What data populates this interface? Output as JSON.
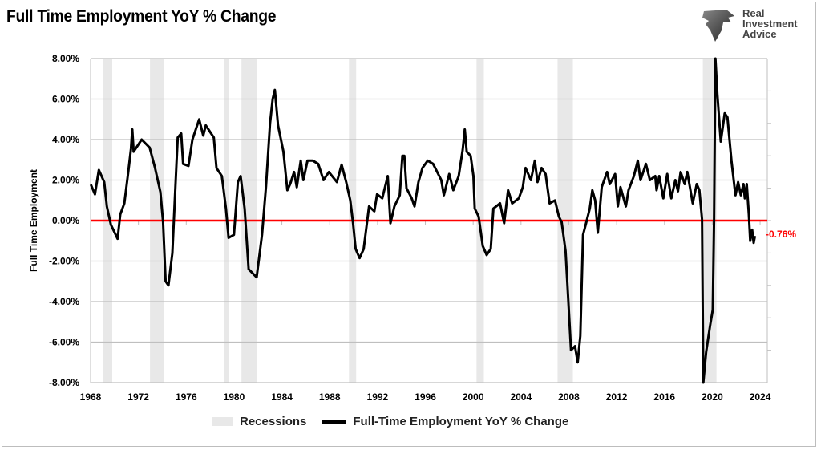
{
  "title": "Full Time Employment YoY % Change",
  "logo": {
    "text": [
      "Real",
      "Investment",
      "Advice"
    ]
  },
  "chart_data": {
    "type": "line",
    "title": "Full Time Employment YoY % Change",
    "ylabel": "Full Time Employment",
    "xlabel": "",
    "xlim": [
      1968,
      2024.6
    ],
    "ylim": [
      -8,
      8
    ],
    "x_ticks": [
      "1968",
      "1972",
      "1976",
      "1980",
      "1984",
      "1988",
      "1992",
      "1996",
      "2000",
      "2004",
      "2008",
      "2012",
      "2016",
      "2020",
      "2024"
    ],
    "y_ticks": [
      "8.00%",
      "6.00%",
      "4.00%",
      "2.00%",
      "0.00%",
      "-2.00%",
      "-4.00%",
      "-6.00%",
      "-8.00%"
    ],
    "grid": "horizontal",
    "legend_position": "bottom",
    "colors": {
      "series": "#000000",
      "recession": "#e8e8e8",
      "zero_line": "#ff0000",
      "annotation": "#ff0000",
      "grid": "#bfbfbf"
    },
    "zero_line": 0,
    "last_value_label": "-0.76%",
    "legend": [
      "Recessions",
      "Full-Time Employment YoY % Change"
    ],
    "recessions": [
      [
        1969.07,
        1969.81
      ],
      [
        1972.97,
        1974.17
      ],
      [
        1979.14,
        1979.54
      ],
      [
        1980.62,
        1981.89
      ],
      [
        1989.61,
        1990.21
      ],
      [
        2000.28,
        2000.89
      ],
      [
        2007.06,
        2008.34
      ],
      [
        2019.21,
        2020.35
      ]
    ],
    "series": [
      {
        "name": "Full-Time Employment YoY % Change",
        "points": [
          [
            1968.02,
            1.78
          ],
          [
            1968.36,
            1.3
          ],
          [
            1968.69,
            2.5
          ],
          [
            1969.14,
            1.9
          ],
          [
            1969.36,
            0.7
          ],
          [
            1969.7,
            -0.2
          ],
          [
            1970.26,
            -0.9
          ],
          [
            1970.48,
            0.3
          ],
          [
            1970.82,
            0.85
          ],
          [
            1971.15,
            2.4
          ],
          [
            1971.38,
            3.55
          ],
          [
            1971.49,
            4.5
          ],
          [
            1971.6,
            3.4
          ],
          [
            1972.27,
            4.0
          ],
          [
            1972.94,
            3.6
          ],
          [
            1973.39,
            2.6
          ],
          [
            1973.84,
            1.4
          ],
          [
            1974.06,
            -0.07
          ],
          [
            1974.28,
            -3.0
          ],
          [
            1974.51,
            -3.2
          ],
          [
            1974.84,
            -1.6
          ],
          [
            1975.18,
            2.8
          ],
          [
            1975.29,
            4.1
          ],
          [
            1975.58,
            4.3
          ],
          [
            1975.74,
            2.8
          ],
          [
            1976.19,
            2.7
          ],
          [
            1976.52,
            4.0
          ],
          [
            1977.08,
            5.0
          ],
          [
            1977.42,
            4.2
          ],
          [
            1977.64,
            4.7
          ],
          [
            1978.31,
            4.1
          ],
          [
            1978.53,
            2.6
          ],
          [
            1978.98,
            2.2
          ],
          [
            1979.32,
            0.6
          ],
          [
            1979.54,
            -0.85
          ],
          [
            1979.99,
            -0.7
          ],
          [
            1980.32,
            1.9
          ],
          [
            1980.55,
            2.2
          ],
          [
            1980.88,
            0.6
          ],
          [
            1981.22,
            -2.4
          ],
          [
            1981.89,
            -2.8
          ],
          [
            1982.34,
            -0.7
          ],
          [
            1982.67,
            1.7
          ],
          [
            1983.01,
            4.8
          ],
          [
            1983.23,
            6.0
          ],
          [
            1983.41,
            6.45
          ],
          [
            1983.68,
            4.7
          ],
          [
            1984.13,
            3.4
          ],
          [
            1984.46,
            1.5
          ],
          [
            1984.69,
            1.8
          ],
          [
            1985.02,
            2.4
          ],
          [
            1985.25,
            1.65
          ],
          [
            1985.58,
            2.96
          ],
          [
            1985.8,
            2.0
          ],
          [
            1986.14,
            2.96
          ],
          [
            1986.59,
            2.96
          ],
          [
            1987.04,
            2.8
          ],
          [
            1987.48,
            2.0
          ],
          [
            1987.93,
            2.4
          ],
          [
            1988.6,
            1.9
          ],
          [
            1989.0,
            2.76
          ],
          [
            1989.38,
            1.9
          ],
          [
            1989.72,
            1.0
          ],
          [
            1989.94,
            -0.07
          ],
          [
            1990.17,
            -1.4
          ],
          [
            1990.5,
            -1.85
          ],
          [
            1990.84,
            -1.4
          ],
          [
            1991.29,
            0.7
          ],
          [
            1991.73,
            0.46
          ],
          [
            1991.96,
            1.3
          ],
          [
            1992.4,
            1.1
          ],
          [
            1992.85,
            2.2
          ],
          [
            1993.08,
            -0.13
          ],
          [
            1993.41,
            0.7
          ],
          [
            1993.86,
            1.25
          ],
          [
            1994.08,
            3.2
          ],
          [
            1994.24,
            3.2
          ],
          [
            1994.42,
            1.6
          ],
          [
            1994.86,
            1.1
          ],
          [
            1995.09,
            0.7
          ],
          [
            1995.42,
            1.9
          ],
          [
            1995.76,
            2.6
          ],
          [
            1996.2,
            2.96
          ],
          [
            1996.65,
            2.8
          ],
          [
            1997.33,
            2.0
          ],
          [
            1997.55,
            1.25
          ],
          [
            1998.0,
            2.3
          ],
          [
            1998.34,
            1.5
          ],
          [
            1998.79,
            2.2
          ],
          [
            1999.12,
            3.5
          ],
          [
            1999.3,
            4.5
          ],
          [
            1999.46,
            3.4
          ],
          [
            1999.79,
            3.2
          ],
          [
            2000.02,
            2.2
          ],
          [
            2000.13,
            0.6
          ],
          [
            2000.46,
            0.2
          ],
          [
            2000.8,
            -1.25
          ],
          [
            2001.13,
            -1.7
          ],
          [
            2001.47,
            -1.4
          ],
          [
            2001.69,
            0.6
          ],
          [
            2002.25,
            0.85
          ],
          [
            2002.59,
            -0.13
          ],
          [
            2002.92,
            1.5
          ],
          [
            2003.26,
            0.85
          ],
          [
            2003.82,
            1.1
          ],
          [
            2004.15,
            1.65
          ],
          [
            2004.38,
            2.6
          ],
          [
            2004.83,
            2.0
          ],
          [
            2005.16,
            2.96
          ],
          [
            2005.38,
            1.9
          ],
          [
            2005.72,
            2.6
          ],
          [
            2006.06,
            2.3
          ],
          [
            2006.39,
            0.85
          ],
          [
            2006.84,
            1.0
          ],
          [
            2007.17,
            0.2
          ],
          [
            2007.4,
            -0.07
          ],
          [
            2007.73,
            -1.5
          ],
          [
            2007.96,
            -4.0
          ],
          [
            2008.18,
            -6.4
          ],
          [
            2008.52,
            -6.2
          ],
          [
            2008.74,
            -7.0
          ],
          [
            2008.96,
            -5.7
          ],
          [
            2009.19,
            -0.7
          ],
          [
            2009.41,
            -0.2
          ],
          [
            2009.75,
            0.6
          ],
          [
            2009.97,
            1.5
          ],
          [
            2010.2,
            1.0
          ],
          [
            2010.42,
            -0.6
          ],
          [
            2010.75,
            1.65
          ],
          [
            2011.2,
            2.4
          ],
          [
            2011.42,
            1.8
          ],
          [
            2011.87,
            2.3
          ],
          [
            2012.1,
            0.7
          ],
          [
            2012.32,
            1.65
          ],
          [
            2012.77,
            0.7
          ],
          [
            2012.99,
            1.5
          ],
          [
            2013.44,
            2.2
          ],
          [
            2013.77,
            2.96
          ],
          [
            2014.0,
            2.0
          ],
          [
            2014.45,
            2.8
          ],
          [
            2014.78,
            2.0
          ],
          [
            2015.23,
            2.2
          ],
          [
            2015.34,
            1.5
          ],
          [
            2015.56,
            2.2
          ],
          [
            2015.9,
            1.1
          ],
          [
            2016.23,
            2.3
          ],
          [
            2016.57,
            1.1
          ],
          [
            2016.91,
            2.0
          ],
          [
            2017.13,
            1.45
          ],
          [
            2017.35,
            2.4
          ],
          [
            2017.69,
            1.8
          ],
          [
            2017.91,
            2.4
          ],
          [
            2018.36,
            0.85
          ],
          [
            2018.7,
            1.8
          ],
          [
            2018.92,
            1.5
          ],
          [
            2019.14,
            0.07
          ],
          [
            2019.25,
            -9.0
          ],
          [
            2019.48,
            -6.5
          ],
          [
            2019.81,
            -5.2
          ],
          [
            2020.04,
            -4.4
          ],
          [
            2020.15,
            0.0
          ],
          [
            2020.26,
            9.0
          ],
          [
            2020.42,
            6.25
          ],
          [
            2020.71,
            3.9
          ],
          [
            2021.04,
            5.3
          ],
          [
            2021.27,
            5.1
          ],
          [
            2021.6,
            2.96
          ],
          [
            2021.94,
            1.25
          ],
          [
            2022.16,
            1.9
          ],
          [
            2022.39,
            1.25
          ],
          [
            2022.61,
            1.8
          ],
          [
            2022.72,
            1.1
          ],
          [
            2022.88,
            1.8
          ],
          [
            2023.06,
            0.3
          ],
          [
            2023.17,
            -1.0
          ],
          [
            2023.33,
            -0.45
          ],
          [
            2023.46,
            -1.1
          ],
          [
            2023.57,
            -0.76
          ]
        ]
      }
    ]
  }
}
